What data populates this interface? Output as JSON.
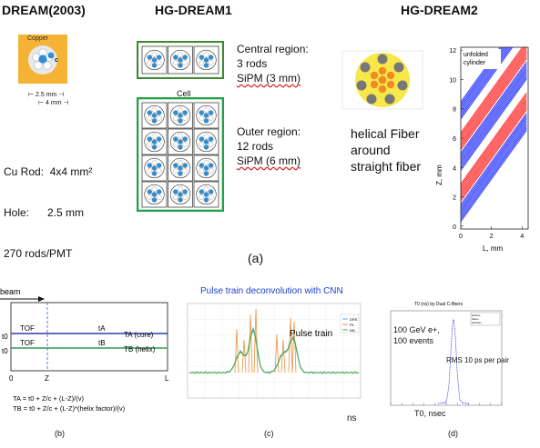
{
  "top": {
    "dream2003": {
      "title": "DREAM(2003)",
      "copper_label": "Copper",
      "dim_small": "2.5 mm",
      "dim_large": "4 mm",
      "specs": [
        "Cu Rod:  4x4 mm²",
        "Hole:      2.5 mm",
        "270 rods/PMT"
      ]
    },
    "hgdream1": {
      "title": "HG-DREAM1",
      "cell_label": "Cell",
      "central": [
        "Central region:",
        "3 rods",
        "SiPM (3 mm)"
      ],
      "outer": [
        "Outer region:",
        "12 rods",
        "SiPM (6 mm)"
      ]
    },
    "hgdream2": {
      "title": "HG-DREAM2",
      "fiber_text": [
        "helical  Fiber",
        "around",
        "straight fiber"
      ]
    },
    "label": "(a)"
  },
  "panel_b": {
    "beam_label": "beam",
    "t0_labels": [
      "t0",
      "t0"
    ],
    "tof_labels": [
      "TOF",
      "TOF"
    ],
    "ta_label": "tA",
    "tb_label": "tB",
    "line_a_label": "TA  (core)",
    "line_b_label": "TB  (helix)",
    "axis_labels": [
      "0",
      "Z",
      "L"
    ],
    "formulas": [
      "TA = t0 + Z/c + (L-Z)/(v)",
      "TB = t0 + Z/c + (L-Z)*(helix factor)/(v)"
    ],
    "label": "(b)",
    "colors": {
      "line_a": "#2b3fae",
      "line_b": "#2f9e55"
    }
  },
  "panel_c": {
    "title": "Pulse train deconvolution with CNN",
    "annotation": "Pulse train",
    "legend": [
      "DRS",
      "Fit",
      "NN"
    ],
    "x_unit": "ns",
    "label": "(c)",
    "colors": {
      "title": "#1f3fd0",
      "drs": "#6aa6e8",
      "fit": "#f0903a",
      "nn": "#4cae4c"
    }
  },
  "panel_d": {
    "title": "T0 (ns) by Dual C-fibers",
    "annotation1": [
      "100 GeV e+,",
      "100 events"
    ],
    "annotation2": "RMS 10 ps per pair",
    "x_label": "T0,    nsec",
    "stats": [
      "Entries",
      "Mean",
      "Std Dev"
    ],
    "label": "(d)"
  },
  "chart_data": {
    "type": "line",
    "xlabel": "L, mm",
    "ylabel": "Z, mm",
    "annotation": "unfolded cylinder",
    "x_ticks": [
      0,
      2,
      4
    ],
    "y_ticks": [
      0,
      2,
      4,
      6,
      8,
      10,
      12
    ],
    "xlim": [
      0,
      4.4
    ],
    "ylim": [
      -0.2,
      12.2
    ],
    "line_slope": 1.45,
    "blue_band_intercepts": [
      0.3,
      3.8,
      7.3
    ],
    "red_band_intercepts": [
      1.7,
      5.2
    ],
    "colors": {
      "blue": "#2f3dff",
      "red": "#ff2e2e"
    }
  }
}
